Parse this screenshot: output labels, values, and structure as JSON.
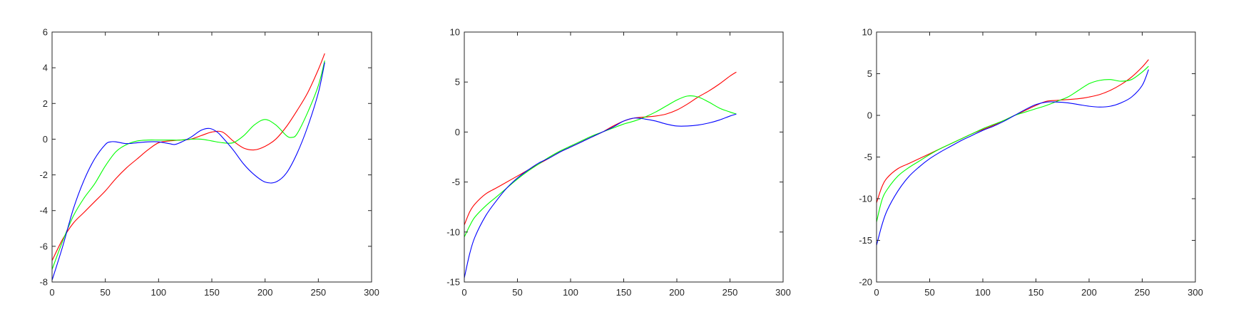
{
  "chart_data": [
    {
      "type": "line",
      "xlim": [
        0,
        300
      ],
      "ylim": [
        -8,
        6
      ],
      "xticks": [
        0,
        50,
        100,
        150,
        200,
        250,
        300
      ],
      "yticks": [
        -8,
        -6,
        -4,
        -2,
        0,
        2,
        4,
        6
      ],
      "xtick_labels": [
        "0",
        "50",
        "100",
        "150",
        "200",
        "250",
        "300"
      ],
      "ytick_labels": [
        "-8",
        "-6",
        "-4",
        "-2",
        "0",
        "2",
        "4",
        "6"
      ],
      "grid": false,
      "series": [
        {
          "color": "#ff0000",
          "x": [
            0,
            10,
            20,
            30,
            40,
            50,
            60,
            70,
            80,
            90,
            100,
            110,
            120,
            130,
            140,
            150,
            160,
            170,
            180,
            190,
            200,
            210,
            220,
            230,
            240,
            250,
            256
          ],
          "y": [
            -6.8,
            -5.6,
            -4.7,
            -4.1,
            -3.5,
            -2.9,
            -2.2,
            -1.6,
            -1.1,
            -0.6,
            -0.2,
            -0.1,
            -0.05,
            0.0,
            0.2,
            0.4,
            0.4,
            -0.1,
            -0.5,
            -0.6,
            -0.4,
            0.0,
            0.7,
            1.6,
            2.6,
            3.9,
            4.8
          ]
        },
        {
          "color": "#00ff00",
          "x": [
            0,
            10,
            20,
            30,
            40,
            50,
            60,
            70,
            80,
            90,
            100,
            110,
            120,
            130,
            140,
            150,
            160,
            170,
            180,
            190,
            200,
            210,
            220,
            225,
            230,
            240,
            250,
            256
          ],
          "y": [
            -7.3,
            -5.7,
            -4.3,
            -3.3,
            -2.5,
            -1.5,
            -0.7,
            -0.3,
            -0.1,
            -0.05,
            -0.05,
            -0.05,
            -0.05,
            0.0,
            0.0,
            -0.1,
            -0.2,
            -0.2,
            0.2,
            0.8,
            1.1,
            0.8,
            0.2,
            0.1,
            0.3,
            1.5,
            3.0,
            4.4
          ]
        },
        {
          "color": "#0000ff",
          "x": [
            0,
            10,
            20,
            30,
            40,
            50,
            55,
            60,
            70,
            80,
            90,
            100,
            110,
            115,
            120,
            130,
            140,
            148,
            155,
            160,
            170,
            180,
            190,
            200,
            210,
            220,
            230,
            240,
            250,
            256
          ],
          "y": [
            -7.9,
            -6.0,
            -3.9,
            -2.3,
            -1.1,
            -0.3,
            -0.15,
            -0.15,
            -0.25,
            -0.2,
            -0.15,
            -0.15,
            -0.25,
            -0.3,
            -0.2,
            0.1,
            0.5,
            0.6,
            0.4,
            0.1,
            -0.6,
            -1.4,
            -2.0,
            -2.4,
            -2.4,
            -1.9,
            -0.8,
            0.7,
            2.6,
            4.3
          ]
        }
      ]
    },
    {
      "type": "line",
      "xlim": [
        0,
        300
      ],
      "ylim": [
        -15,
        10
      ],
      "xticks": [
        0,
        50,
        100,
        150,
        200,
        250,
        300
      ],
      "yticks": [
        -15,
        -10,
        -5,
        0,
        5,
        10
      ],
      "xtick_labels": [
        "0",
        "50",
        "100",
        "150",
        "200",
        "250",
        "300"
      ],
      "ytick_labels": [
        "-15",
        "-10",
        "-5",
        "0",
        "5",
        "10"
      ],
      "grid": false,
      "series": [
        {
          "color": "#ff0000",
          "x": [
            0,
            5,
            10,
            20,
            30,
            40,
            50,
            60,
            70,
            80,
            90,
            100,
            110,
            120,
            130,
            140,
            150,
            160,
            170,
            180,
            190,
            200,
            210,
            220,
            230,
            240,
            250,
            256
          ],
          "y": [
            -9.3,
            -8.0,
            -7.2,
            -6.2,
            -5.6,
            -5.0,
            -4.4,
            -3.8,
            -3.2,
            -2.6,
            -2.0,
            -1.5,
            -1.0,
            -0.5,
            0.0,
            0.6,
            1.1,
            1.4,
            1.5,
            1.6,
            1.8,
            2.2,
            2.8,
            3.5,
            4.1,
            4.8,
            5.6,
            6.0
          ]
        },
        {
          "color": "#00ff00",
          "x": [
            0,
            5,
            10,
            20,
            30,
            40,
            50,
            60,
            70,
            80,
            90,
            100,
            110,
            120,
            130,
            140,
            150,
            160,
            170,
            180,
            190,
            200,
            210,
            220,
            230,
            240,
            250,
            256
          ],
          "y": [
            -10.5,
            -9.4,
            -8.5,
            -7.4,
            -6.5,
            -5.6,
            -4.7,
            -3.9,
            -3.2,
            -2.5,
            -1.9,
            -1.4,
            -0.9,
            -0.4,
            0.0,
            0.4,
            0.8,
            1.1,
            1.5,
            2.0,
            2.6,
            3.2,
            3.6,
            3.5,
            3.0,
            2.4,
            2.0,
            1.8
          ]
        },
        {
          "color": "#0000ff",
          "x": [
            0,
            5,
            10,
            20,
            30,
            40,
            50,
            60,
            70,
            80,
            90,
            100,
            110,
            120,
            130,
            140,
            150,
            160,
            170,
            180,
            190,
            200,
            210,
            220,
            230,
            240,
            250,
            256
          ],
          "y": [
            -14.6,
            -12.2,
            -10.5,
            -8.4,
            -6.9,
            -5.6,
            -4.6,
            -3.8,
            -3.1,
            -2.6,
            -2.0,
            -1.5,
            -1.0,
            -0.5,
            0.0,
            0.5,
            1.1,
            1.4,
            1.3,
            1.1,
            0.8,
            0.6,
            0.6,
            0.7,
            0.9,
            1.2,
            1.6,
            1.8
          ]
        }
      ]
    },
    {
      "type": "line",
      "xlim": [
        0,
        300
      ],
      "ylim": [
        -20,
        10
      ],
      "xticks": [
        0,
        50,
        100,
        150,
        200,
        250,
        300
      ],
      "yticks": [
        -20,
        -15,
        -10,
        -5,
        0,
        5,
        10
      ],
      "xtick_labels": [
        "0",
        "50",
        "100",
        "150",
        "200",
        "250",
        "300"
      ],
      "ytick_labels": [
        "-20",
        "-15",
        "-10",
        "-5",
        "0",
        "5",
        "10"
      ],
      "grid": false,
      "series": [
        {
          "color": "#ff0000",
          "x": [
            0,
            5,
            10,
            20,
            30,
            40,
            50,
            60,
            70,
            80,
            90,
            100,
            110,
            120,
            130,
            140,
            150,
            160,
            170,
            180,
            190,
            200,
            210,
            220,
            230,
            240,
            250,
            256
          ],
          "y": [
            -10.5,
            -8.6,
            -7.5,
            -6.4,
            -5.8,
            -5.2,
            -4.6,
            -4.0,
            -3.4,
            -2.8,
            -2.2,
            -1.7,
            -1.2,
            -0.6,
            0.0,
            0.6,
            1.2,
            1.7,
            1.8,
            1.9,
            2.0,
            2.2,
            2.5,
            3.0,
            3.7,
            4.6,
            5.8,
            6.7
          ]
        },
        {
          "color": "#00ff00",
          "x": [
            0,
            5,
            10,
            20,
            30,
            40,
            50,
            60,
            70,
            80,
            90,
            100,
            110,
            120,
            130,
            140,
            150,
            160,
            170,
            180,
            190,
            200,
            210,
            220,
            230,
            240,
            250,
            256
          ],
          "y": [
            -12.8,
            -10.2,
            -8.9,
            -7.3,
            -6.3,
            -5.5,
            -4.7,
            -4.0,
            -3.4,
            -2.8,
            -2.2,
            -1.6,
            -1.1,
            -0.6,
            0.0,
            0.4,
            0.8,
            1.2,
            1.7,
            2.2,
            3.0,
            3.8,
            4.2,
            4.3,
            4.1,
            4.3,
            5.2,
            5.9
          ]
        },
        {
          "color": "#0000ff",
          "x": [
            0,
            5,
            10,
            20,
            30,
            40,
            50,
            60,
            70,
            80,
            90,
            100,
            110,
            120,
            130,
            140,
            150,
            160,
            170,
            180,
            190,
            200,
            210,
            220,
            230,
            240,
            250,
            256
          ],
          "y": [
            -15.6,
            -13.2,
            -11.4,
            -9.1,
            -7.4,
            -6.2,
            -5.2,
            -4.4,
            -3.7,
            -3.0,
            -2.4,
            -1.8,
            -1.3,
            -0.7,
            0.0,
            0.7,
            1.3,
            1.6,
            1.6,
            1.5,
            1.3,
            1.1,
            1.0,
            1.1,
            1.5,
            2.2,
            3.6,
            5.5
          ]
        }
      ]
    }
  ]
}
